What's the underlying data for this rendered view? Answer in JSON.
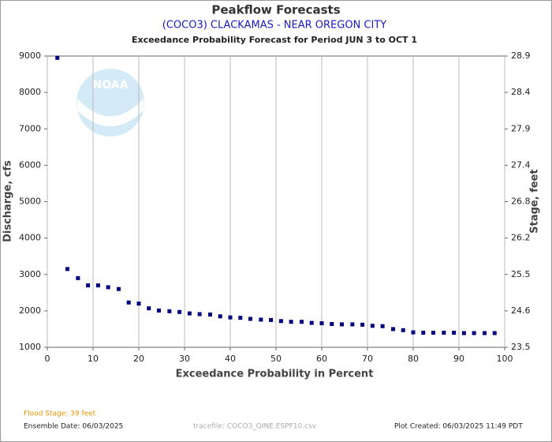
{
  "chart_data": {
    "type": "scatter",
    "title": "Peakflow Forecasts",
    "subtitle": "(COCO3) CLACKAMAS - NEAR OREGON CITY",
    "description": "Exceedance Probability Forecast for Period JUN 3 to OCT 1",
    "x_label": "Exceedance Probability in Percent",
    "y_label": "Discharge, cfs",
    "y2_label": "Stage, feet",
    "xlim": [
      0,
      100
    ],
    "xticks": [
      0,
      10,
      20,
      30,
      40,
      50,
      60,
      70,
      80,
      90,
      100
    ],
    "ylim": [
      1000,
      9000
    ],
    "yticks": [
      1000,
      2000,
      3000,
      4000,
      5000,
      6000,
      7000,
      8000,
      9000
    ],
    "y2ticks": [
      23.5,
      24.6,
      25.5,
      26.2,
      26.8,
      27.4,
      27.9,
      28.4,
      28.9
    ],
    "grid": "x",
    "color": "#00007f",
    "x": [
      2.2,
      4.4,
      6.7,
      8.9,
      11.1,
      13.3,
      15.6,
      17.8,
      20,
      22.2,
      24.4,
      26.7,
      28.9,
      31.1,
      33.3,
      35.6,
      37.8,
      40,
      42.2,
      44.4,
      46.7,
      48.9,
      51.1,
      53.3,
      55.6,
      57.8,
      60,
      62.2,
      64.4,
      66.7,
      68.9,
      71.1,
      73.3,
      75.6,
      77.8,
      80,
      82.2,
      84.4,
      86.7,
      88.9,
      91.1,
      93.3,
      95.6,
      97.8
    ],
    "values": [
      8950,
      3150,
      2900,
      2700,
      2700,
      2650,
      2600,
      2230,
      2200,
      2070,
      2010,
      1990,
      1970,
      1930,
      1910,
      1900,
      1850,
      1820,
      1810,
      1780,
      1760,
      1750,
      1720,
      1700,
      1700,
      1670,
      1660,
      1640,
      1630,
      1630,
      1620,
      1590,
      1580,
      1500,
      1470,
      1410,
      1400,
      1400,
      1400,
      1400,
      1390,
      1390,
      1390,
      1390
    ],
    "flood_stage": "Flood Stage: 39 feet",
    "ensemble_date": "Ensemble Date: 06/03/2025",
    "tracefile": "tracefile: COCO3_QINE.ESPF10.csv",
    "plot_created": "Plot Created: 06/03/2025 11:49 PDT"
  }
}
